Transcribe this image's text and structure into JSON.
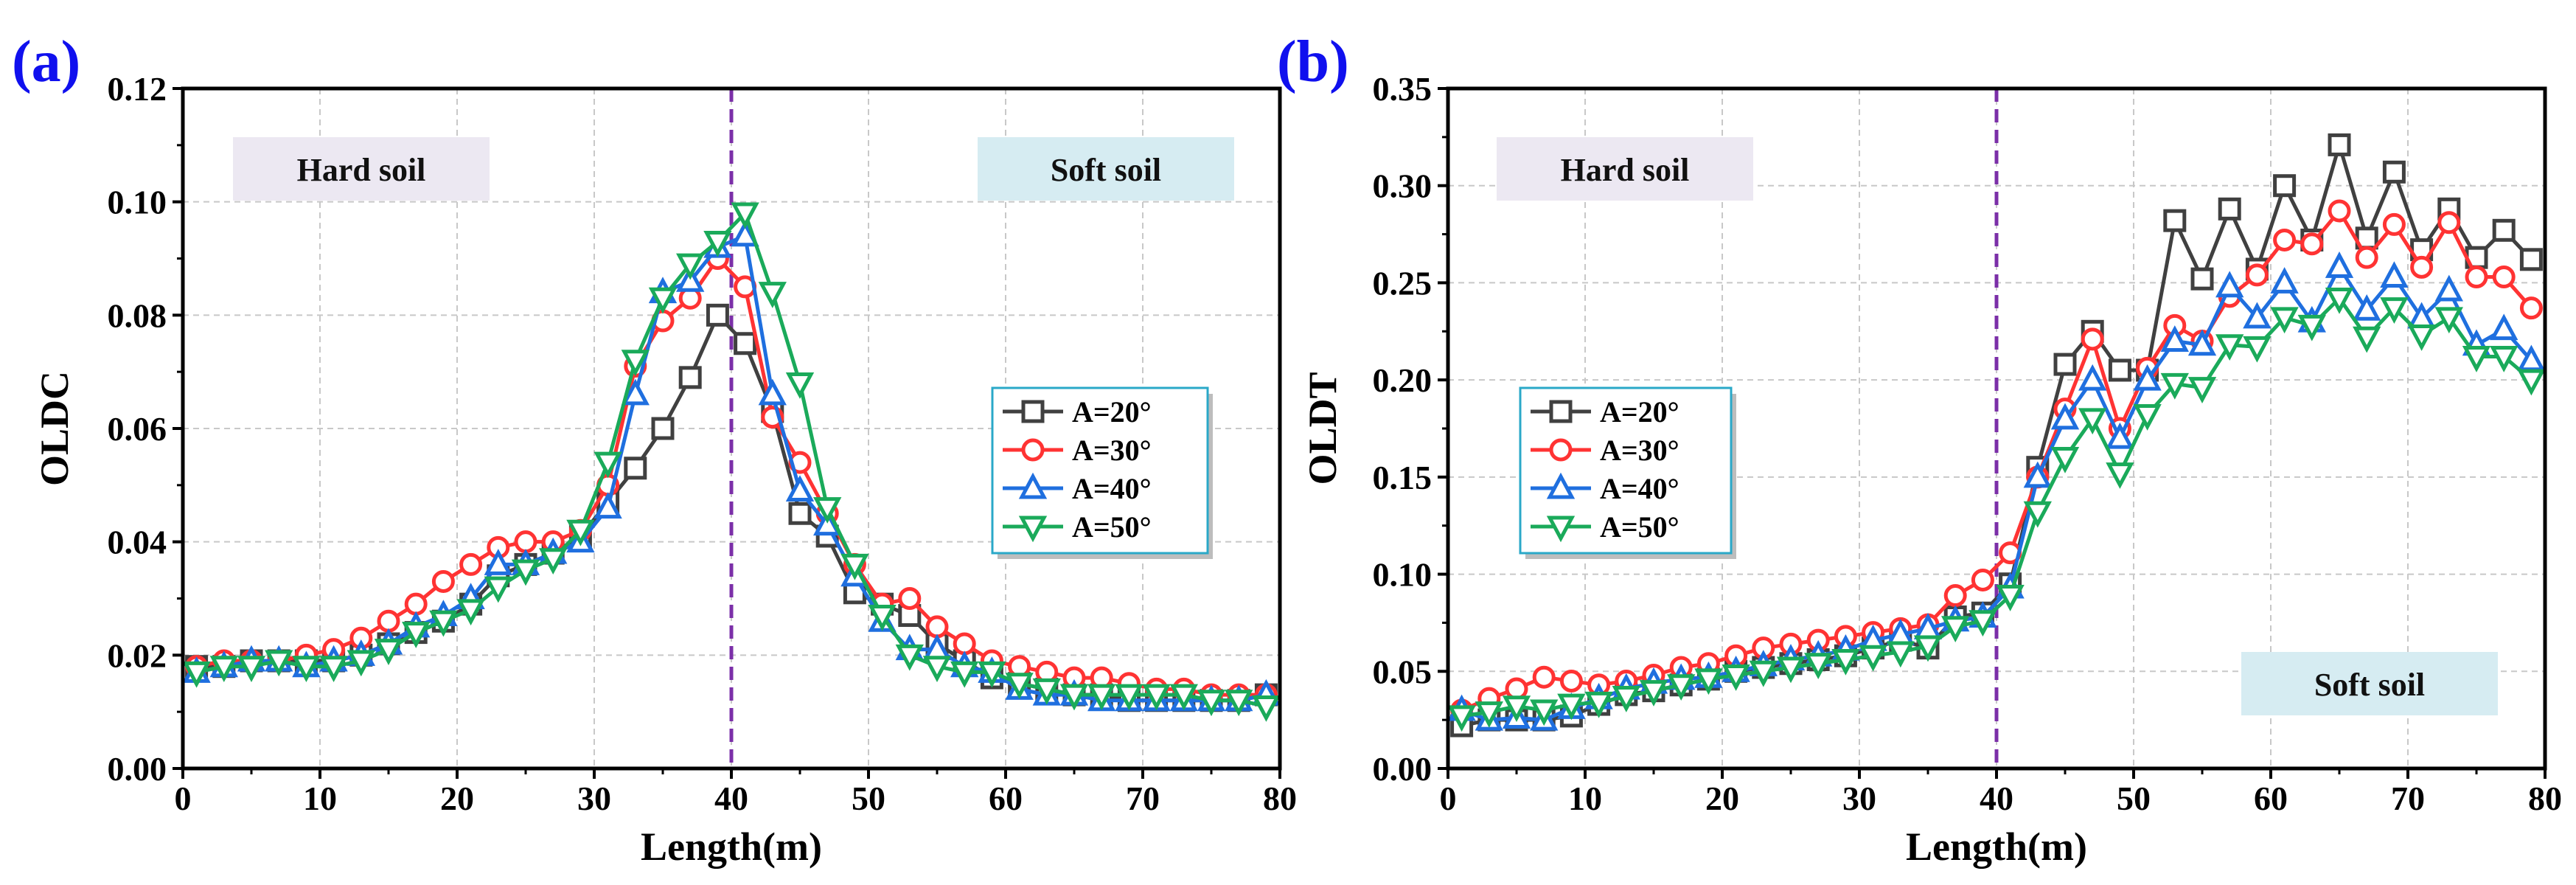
{
  "colors": {
    "s20": "#404040",
    "s30": "#ff3333",
    "s40": "#1f6fdf",
    "s50": "#1aaa5a",
    "divider": "#7b2fa8",
    "panel_label": "#1010ee",
    "hard_box": "#ece8f2",
    "soft_box": "#d6ecf2",
    "legend_border": "#2aa8c8"
  },
  "chart_data": [
    {
      "id": "a",
      "panel_label": "(a)",
      "type": "line",
      "xlabel": "Length(m)",
      "ylabel": "OLDC",
      "xlim": [
        0,
        80
      ],
      "ylim": [
        0,
        0.12
      ],
      "xticks": [
        0,
        10,
        20,
        30,
        40,
        50,
        60,
        70,
        80
      ],
      "xtick_labels": [
        "0",
        "10",
        "20",
        "30",
        "40",
        "50",
        "60",
        "70",
        "80"
      ],
      "yticks": [
        0,
        0.02,
        0.04,
        0.06,
        0.08,
        0.1,
        0.12
      ],
      "ytick_labels": [
        "0.00",
        "0.02",
        "0.04",
        "0.06",
        "0.08",
        "0.10",
        "0.12"
      ],
      "grid": true,
      "divider_x": 40,
      "annotations": [
        {
          "text": "Hard soil",
          "position": "top-left"
        },
        {
          "text": "Soft soil",
          "position": "top-right"
        }
      ],
      "legend": {
        "position": "right",
        "entries": [
          "A=20°",
          "A=30°",
          "A=40°",
          "A=50°"
        ]
      },
      "x": [
        1,
        3,
        5,
        7,
        9,
        11,
        13,
        15,
        17,
        19,
        21,
        23,
        25,
        27,
        29,
        31,
        33,
        35,
        37,
        39,
        41,
        43,
        45,
        47,
        49,
        51,
        53,
        55,
        57,
        59,
        61,
        63,
        65,
        67,
        69,
        71,
        73,
        75,
        77,
        79
      ],
      "series": [
        {
          "name": "A=20°",
          "key": "s20",
          "marker": "square",
          "values": [
            0.018,
            0.018,
            0.019,
            0.019,
            0.019,
            0.019,
            0.02,
            0.022,
            0.024,
            0.026,
            0.029,
            0.034,
            0.036,
            0.038,
            0.041,
            0.047,
            0.053,
            0.06,
            0.069,
            0.08,
            0.075,
            0.063,
            0.045,
            0.041,
            0.031,
            0.029,
            0.027,
            0.022,
            0.019,
            0.016,
            0.015,
            0.014,
            0.013,
            0.013,
            0.012,
            0.012,
            0.012,
            0.012,
            0.012,
            0.013
          ]
        },
        {
          "name": "A=30°",
          "key": "s30",
          "marker": "circle",
          "values": [
            0.018,
            0.019,
            0.019,
            0.019,
            0.02,
            0.021,
            0.023,
            0.026,
            0.029,
            0.033,
            0.036,
            0.039,
            0.04,
            0.04,
            0.042,
            0.05,
            0.071,
            0.079,
            0.083,
            0.09,
            0.085,
            0.062,
            0.054,
            0.045,
            0.036,
            0.029,
            0.03,
            0.025,
            0.022,
            0.019,
            0.018,
            0.017,
            0.016,
            0.016,
            0.015,
            0.014,
            0.014,
            0.013,
            0.013,
            0.013
          ]
        },
        {
          "name": "A=40°",
          "key": "s40",
          "marker": "triangle-up",
          "values": [
            0.017,
            0.018,
            0.019,
            0.019,
            0.018,
            0.019,
            0.02,
            0.022,
            0.025,
            0.027,
            0.03,
            0.036,
            0.036,
            0.038,
            0.04,
            0.046,
            0.066,
            0.084,
            0.086,
            0.092,
            0.094,
            0.066,
            0.049,
            0.043,
            0.034,
            0.026,
            0.021,
            0.021,
            0.018,
            0.017,
            0.014,
            0.013,
            0.013,
            0.012,
            0.012,
            0.012,
            0.012,
            0.012,
            0.012,
            0.013
          ]
        },
        {
          "name": "A=50°",
          "key": "s50",
          "marker": "triangle-down",
          "values": [
            0.017,
            0.018,
            0.018,
            0.019,
            0.018,
            0.018,
            0.019,
            0.021,
            0.024,
            0.026,
            0.028,
            0.032,
            0.035,
            0.037,
            0.042,
            0.054,
            0.072,
            0.083,
            0.089,
            0.093,
            0.098,
            0.084,
            0.068,
            0.046,
            0.036,
            0.027,
            0.02,
            0.018,
            0.017,
            0.017,
            0.015,
            0.014,
            0.013,
            0.013,
            0.013,
            0.013,
            0.013,
            0.012,
            0.012,
            0.011
          ]
        }
      ]
    },
    {
      "id": "b",
      "panel_label": "(b)",
      "type": "line",
      "xlabel": "Length(m)",
      "ylabel": "OLDT",
      "xlim": [
        0,
        80
      ],
      "ylim": [
        0,
        0.35
      ],
      "xticks": [
        0,
        10,
        20,
        30,
        40,
        50,
        60,
        70,
        80
      ],
      "xtick_labels": [
        "0",
        "10",
        "20",
        "30",
        "40",
        "50",
        "60",
        "70",
        "80"
      ],
      "yticks": [
        0,
        0.05,
        0.1,
        0.15,
        0.2,
        0.25,
        0.3,
        0.35
      ],
      "ytick_labels": [
        "0.00",
        "0.05",
        "0.10",
        "0.15",
        "0.20",
        "0.25",
        "0.30",
        "0.35"
      ],
      "grid": true,
      "divider_x": 40,
      "annotations": [
        {
          "text": "Hard soil",
          "position": "top-left"
        },
        {
          "text": "Soft soil",
          "position": "bottom-right"
        }
      ],
      "legend": {
        "position": "left",
        "entries": [
          "A=20°",
          "A=30°",
          "A=40°",
          "A=50°"
        ]
      },
      "x": [
        1,
        3,
        5,
        7,
        9,
        11,
        13,
        15,
        17,
        19,
        21,
        23,
        25,
        27,
        29,
        31,
        33,
        35,
        37,
        39,
        41,
        43,
        45,
        47,
        49,
        51,
        53,
        55,
        57,
        59,
        61,
        63,
        65,
        67,
        69,
        71,
        73,
        75,
        77,
        79
      ],
      "series": [
        {
          "name": "A=20°",
          "key": "s20",
          "marker": "square",
          "values": [
            0.022,
            0.025,
            0.025,
            0.025,
            0.027,
            0.033,
            0.038,
            0.04,
            0.043,
            0.046,
            0.05,
            0.052,
            0.054,
            0.056,
            0.058,
            0.062,
            0.066,
            0.062,
            0.078,
            0.08,
            0.095,
            0.155,
            0.208,
            0.225,
            0.205,
            0.205,
            0.282,
            0.252,
            0.288,
            0.257,
            0.3,
            0.272,
            0.321,
            0.273,
            0.307,
            0.267,
            0.288,
            0.263,
            0.277,
            0.262
          ]
        },
        {
          "name": "A=30°",
          "key": "s30",
          "marker": "circle",
          "values": [
            0.03,
            0.036,
            0.041,
            0.047,
            0.045,
            0.043,
            0.045,
            0.048,
            0.052,
            0.054,
            0.058,
            0.062,
            0.064,
            0.066,
            0.068,
            0.07,
            0.072,
            0.074,
            0.089,
            0.097,
            0.111,
            0.15,
            0.185,
            0.221,
            0.175,
            0.206,
            0.228,
            0.22,
            0.243,
            0.254,
            0.272,
            0.27,
            0.287,
            0.263,
            0.28,
            0.258,
            0.281,
            0.253,
            0.253,
            0.237
          ]
        },
        {
          "name": "A=40°",
          "key": "s40",
          "marker": "triangle-up",
          "values": [
            0.03,
            0.025,
            0.026,
            0.025,
            0.031,
            0.036,
            0.041,
            0.044,
            0.046,
            0.047,
            0.05,
            0.053,
            0.056,
            0.058,
            0.061,
            0.066,
            0.069,
            0.072,
            0.076,
            0.078,
            0.093,
            0.15,
            0.18,
            0.2,
            0.17,
            0.2,
            0.22,
            0.218,
            0.248,
            0.232,
            0.25,
            0.23,
            0.258,
            0.236,
            0.253,
            0.232,
            0.246,
            0.218,
            0.226,
            0.21
          ]
        },
        {
          "name": "A=50°",
          "key": "s50",
          "marker": "triangle-down",
          "values": [
            0.027,
            0.029,
            0.032,
            0.03,
            0.033,
            0.034,
            0.037,
            0.04,
            0.043,
            0.046,
            0.048,
            0.05,
            0.052,
            0.054,
            0.056,
            0.058,
            0.06,
            0.063,
            0.073,
            0.076,
            0.089,
            0.132,
            0.16,
            0.18,
            0.152,
            0.182,
            0.198,
            0.196,
            0.218,
            0.217,
            0.232,
            0.228,
            0.242,
            0.222,
            0.237,
            0.223,
            0.232,
            0.212,
            0.212,
            0.2
          ]
        }
      ]
    }
  ]
}
